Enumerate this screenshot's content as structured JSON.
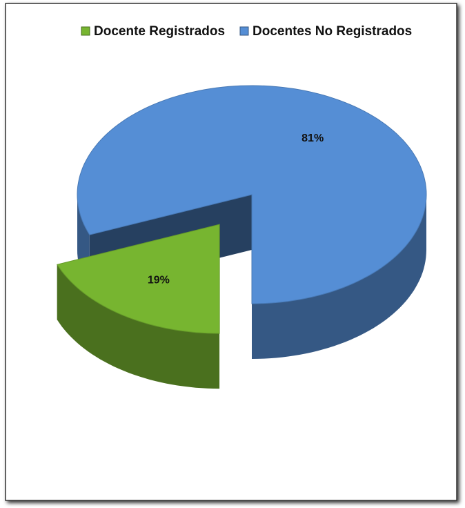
{
  "chart_data": {
    "type": "pie",
    "categories": [
      "Docente Registrados",
      "Docentes No Registrados"
    ],
    "values": [
      19,
      81
    ],
    "value_labels": [
      "19%",
      "81%"
    ],
    "colors": [
      "#77b530",
      "#558ed5"
    ],
    "legend": "top"
  }
}
